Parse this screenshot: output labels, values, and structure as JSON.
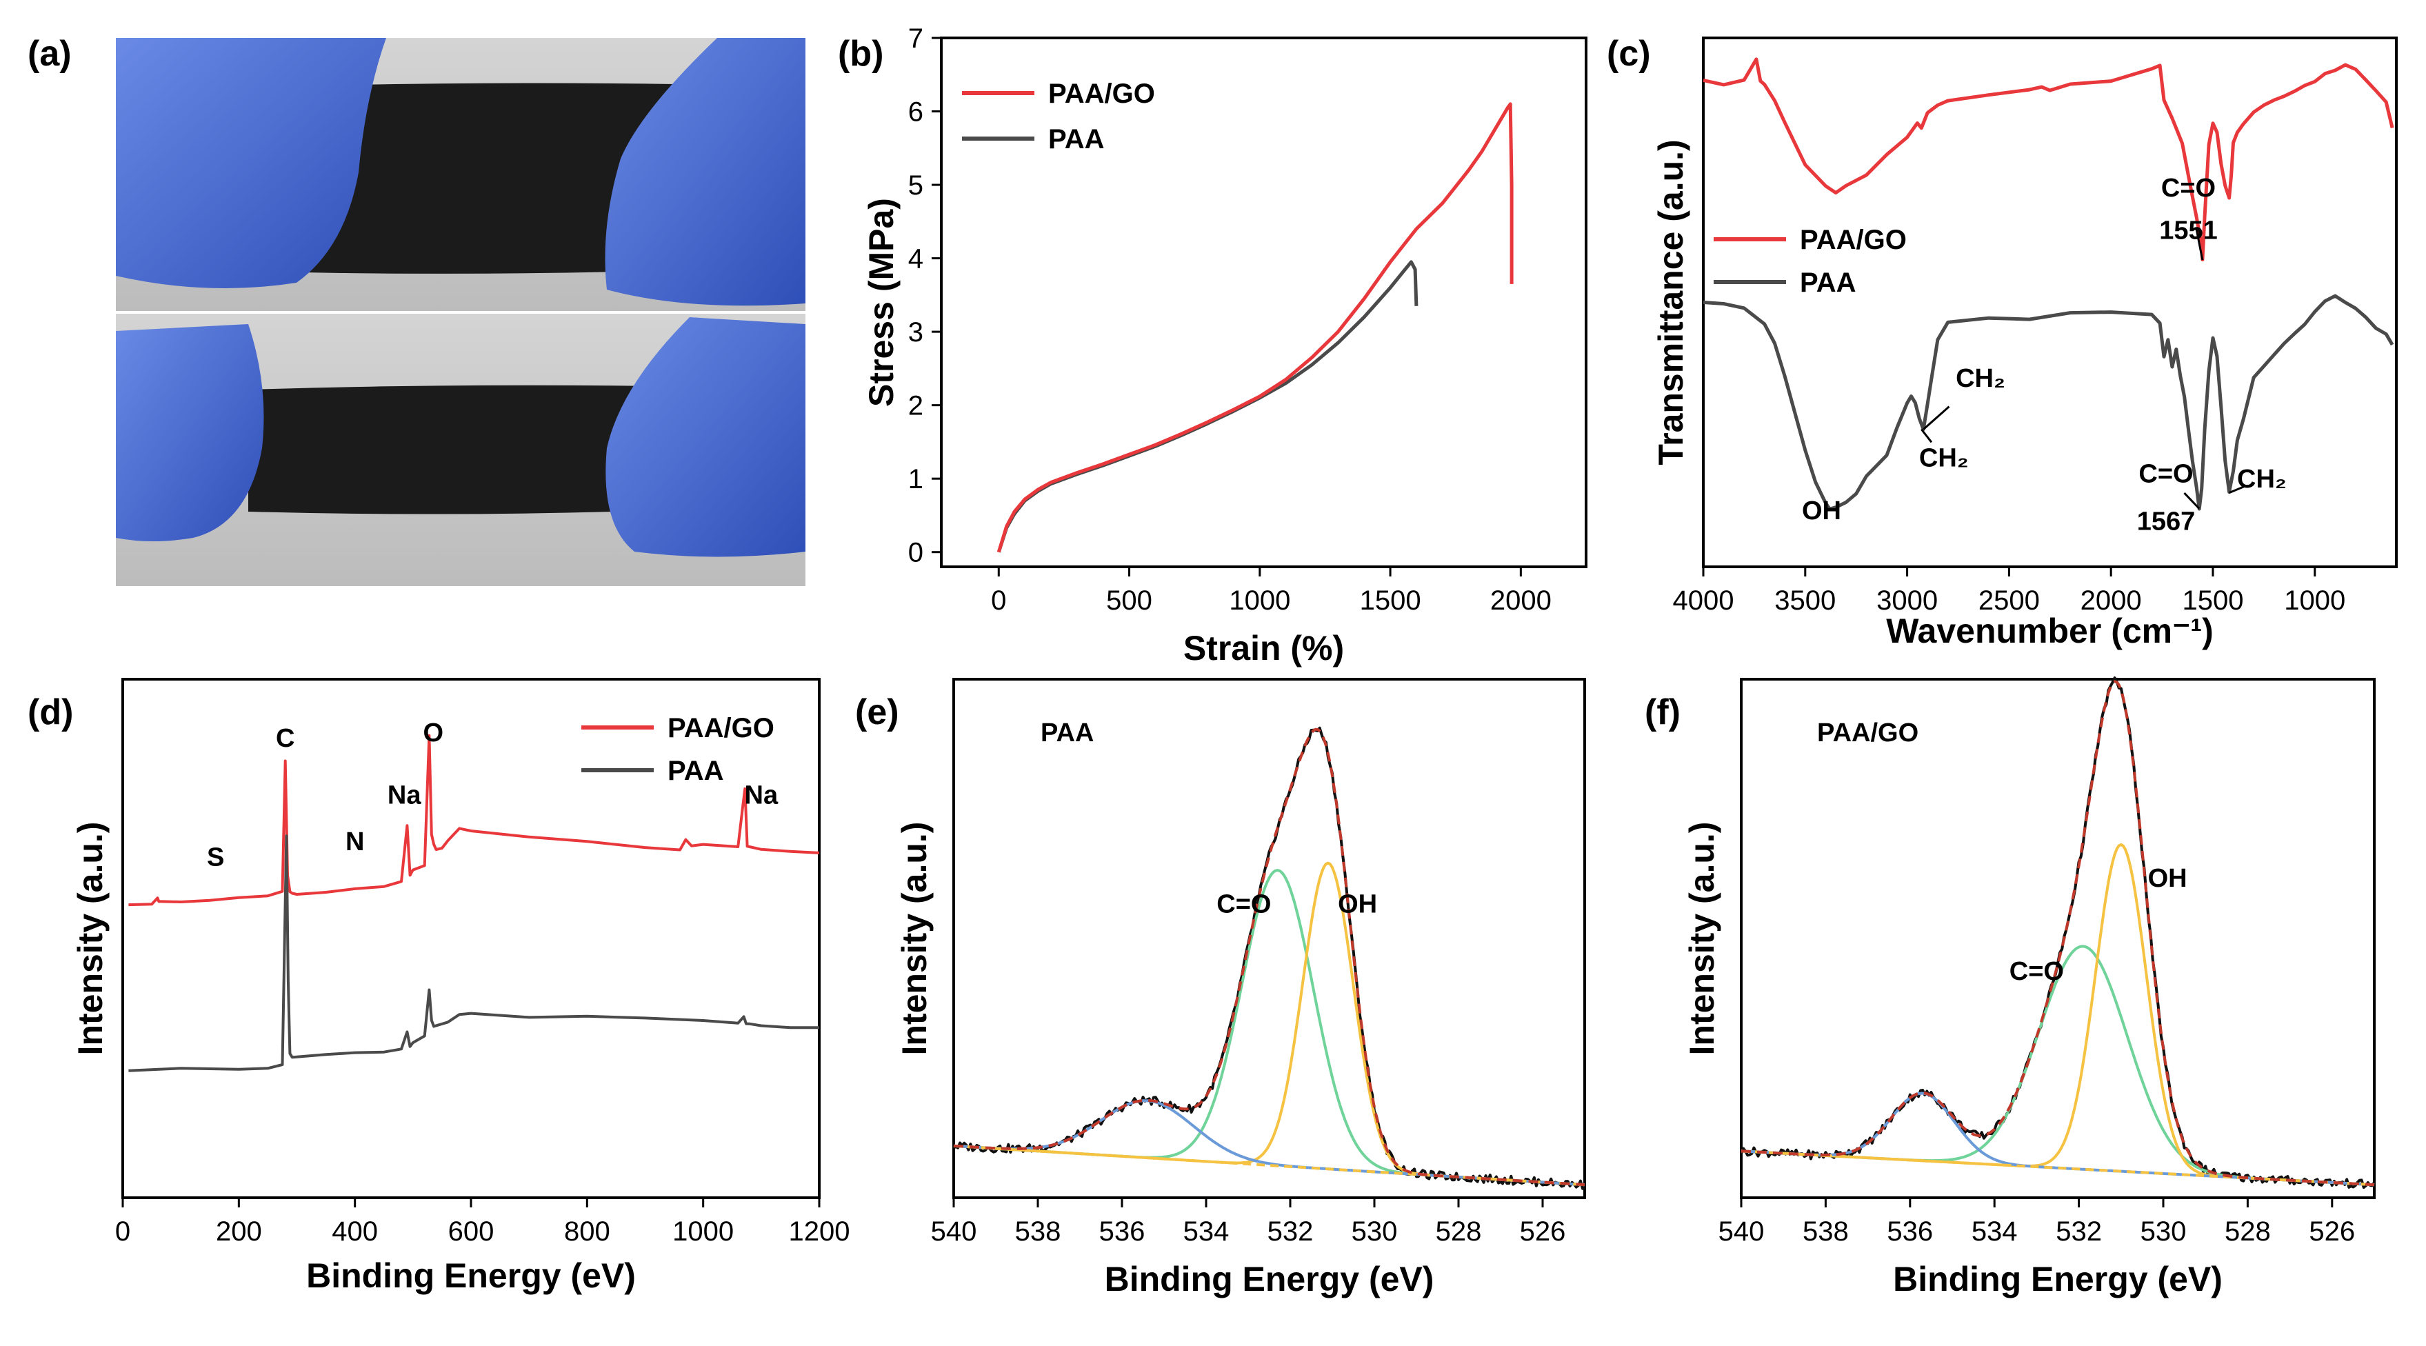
{
  "panel_labels": [
    "(a)",
    "(b)",
    "(c)",
    "(d)",
    "(e)",
    "(f)"
  ],
  "colors": {
    "paa_go": "#e8383b",
    "paa": "#4a4a4a",
    "fit": "#c0392b",
    "oh": "#f5c242",
    "co": "#6fd39a",
    "sat": "#6a9bd8",
    "bg": "#c8c8c8",
    "glove": "#4f6fd6",
    "film": "#1b1b1b"
  },
  "photo_a": {
    "description_icons": [
      "glove-icon",
      "film-icon"
    ]
  },
  "chart_data": [
    {
      "id": "b",
      "type": "line",
      "xlabel": "Strain (%)",
      "ylabel": "Stress (MPa)",
      "xlim": [
        -220,
        2250
      ],
      "ylim": [
        -0.2,
        7
      ],
      "xticks": [
        0,
        500,
        1000,
        1500,
        2000
      ],
      "yticks": [
        0,
        1,
        2,
        3,
        4,
        5,
        6,
        7
      ],
      "legend": [
        "PAA/GO",
        "PAA"
      ],
      "series": [
        {
          "name": "PAA/GO",
          "x": [
            0,
            30,
            60,
            100,
            150,
            200,
            300,
            400,
            500,
            600,
            700,
            800,
            900,
            1000,
            1100,
            1200,
            1300,
            1400,
            1500,
            1600,
            1700,
            1800,
            1850,
            1900,
            1950,
            1960,
            1965,
            1965
          ],
          "y": [
            0,
            0.35,
            0.55,
            0.72,
            0.85,
            0.95,
            1.08,
            1.2,
            1.33,
            1.46,
            1.61,
            1.77,
            1.94,
            2.12,
            2.35,
            2.65,
            3.0,
            3.45,
            3.95,
            4.4,
            4.75,
            5.2,
            5.45,
            5.75,
            6.05,
            6.1,
            5.0,
            3.65
          ]
        },
        {
          "name": "PAA",
          "x": [
            0,
            30,
            60,
            100,
            150,
            200,
            300,
            400,
            500,
            600,
            700,
            800,
            900,
            1000,
            1100,
            1200,
            1300,
            1400,
            1500,
            1550,
            1580,
            1595,
            1600
          ],
          "y": [
            0,
            0.33,
            0.52,
            0.7,
            0.83,
            0.93,
            1.06,
            1.18,
            1.31,
            1.44,
            1.59,
            1.75,
            1.92,
            2.1,
            2.3,
            2.55,
            2.85,
            3.2,
            3.6,
            3.82,
            3.95,
            3.85,
            3.35
          ]
        }
      ]
    },
    {
      "id": "c",
      "type": "line",
      "xlabel": "Wavenumber (cm⁻¹)",
      "ylabel": "Transmittance (a.u.)",
      "xlim": [
        4000,
        600
      ],
      "ylim": [
        0,
        100
      ],
      "xticks": [
        4000,
        3500,
        3000,
        2500,
        2000,
        1500,
        1000
      ],
      "legend": [
        "PAA/GO",
        "PAA"
      ],
      "annotations": [
        {
          "text": "C=O",
          "x": 1620,
          "y": 70,
          "series": "PAA/GO"
        },
        {
          "text": "1551",
          "x": 1620,
          "y": 62
        },
        {
          "text": "OH",
          "x": 3420,
          "y": 9
        },
        {
          "text": "CH₂",
          "x": 2640,
          "y": 34
        },
        {
          "text": "CH₂",
          "x": 2820,
          "y": 19
        },
        {
          "text": "C=O",
          "x": 1730,
          "y": 16
        },
        {
          "text": "1567",
          "x": 1730,
          "y": 7
        },
        {
          "text": "CH₂",
          "x": 1260,
          "y": 15
        }
      ],
      "series": [
        {
          "name": "PAA/GO",
          "x": [
            4000,
            3900,
            3800,
            3740,
            3720,
            3700,
            3650,
            3600,
            3500,
            3400,
            3350,
            3300,
            3200,
            3100,
            3000,
            2950,
            2930,
            2900,
            2850,
            2800,
            2600,
            2400,
            2340,
            2300,
            2200,
            2000,
            1800,
            1760,
            1740,
            1700,
            1680,
            1650,
            1620,
            1600,
            1580,
            1560,
            1551,
            1540,
            1520,
            1500,
            1480,
            1460,
            1440,
            1420,
            1410,
            1400,
            1380,
            1350,
            1300,
            1250,
            1200,
            1150,
            1100,
            1050,
            1000,
            950,
            900,
            850,
            800,
            750,
            700,
            650,
            620
          ],
          "y": [
            92,
            91,
            92,
            96,
            92,
            91,
            88,
            84,
            76,
            72,
            71,
            72,
            74,
            78,
            81,
            84,
            83,
            86,
            87,
            88,
            89,
            90,
            91,
            90,
            91,
            92,
            94,
            95,
            88,
            85,
            83,
            80,
            74,
            70,
            66,
            62,
            58,
            66,
            80,
            84,
            82,
            76,
            72,
            70,
            74,
            80,
            82,
            84,
            86,
            87,
            88,
            89,
            90,
            91,
            92,
            93,
            94,
            95,
            94,
            92,
            90,
            88,
            83
          ]
        },
        {
          "name": "PAA",
          "x": [
            4000,
            3900,
            3800,
            3700,
            3650,
            3600,
            3550,
            3500,
            3450,
            3400,
            3380,
            3350,
            3300,
            3250,
            3200,
            3100,
            3050,
            3000,
            2980,
            2960,
            2940,
            2920,
            2900,
            2880,
            2850,
            2800,
            2600,
            2400,
            2200,
            2000,
            1800,
            1760,
            1740,
            1720,
            1700,
            1680,
            1660,
            1640,
            1620,
            1600,
            1580,
            1567,
            1555,
            1540,
            1520,
            1500,
            1480,
            1460,
            1440,
            1420,
            1400,
            1380,
            1350,
            1300,
            1250,
            1200,
            1150,
            1100,
            1050,
            1000,
            950,
            900,
            850,
            800,
            750,
            700,
            650,
            620
          ],
          "y": [
            50,
            50,
            49,
            46,
            42,
            36,
            29,
            22,
            16,
            12,
            11,
            11,
            12,
            14,
            17,
            21,
            26,
            31,
            32,
            31,
            28,
            26,
            31,
            36,
            43,
            46,
            47,
            47,
            48,
            48,
            48,
            46,
            40,
            43,
            38,
            41,
            36,
            32,
            26,
            20,
            15,
            11,
            15,
            26,
            37,
            43,
            40,
            30,
            20,
            14,
            18,
            24,
            28,
            36,
            38,
            40,
            42,
            44,
            46,
            48,
            50,
            51,
            50,
            49,
            47,
            45,
            44,
            42
          ]
        }
      ]
    },
    {
      "id": "d",
      "type": "line",
      "xlabel": "Binding Energy (eV)",
      "ylabel": "Intensity (a.u.)",
      "xlim": [
        0,
        1200
      ],
      "ylim": [
        0,
        100
      ],
      "xticks": [
        0,
        200,
        400,
        600,
        800,
        1000,
        1200
      ],
      "legend": [
        "PAA/GO",
        "PAA"
      ],
      "annotations": [
        {
          "text": "S",
          "x": 160,
          "y": 64
        },
        {
          "text": "C",
          "x": 280,
          "y": 87
        },
        {
          "text": "N",
          "x": 400,
          "y": 67
        },
        {
          "text": "Na",
          "x": 485,
          "y": 76
        },
        {
          "text": "O",
          "x": 535,
          "y": 88
        },
        {
          "text": "Na",
          "x": 1100,
          "y": 76
        }
      ],
      "series": [
        {
          "name": "PAA/GO",
          "x": [
            10,
            50,
            60,
            62,
            100,
            150,
            200,
            250,
            275,
            280,
            284,
            288,
            292,
            300,
            350,
            400,
            450,
            480,
            490,
            495,
            500,
            520,
            528,
            532,
            536,
            540,
            550,
            560,
            580,
            600,
            700,
            800,
            900,
            960,
            970,
            980,
            1000,
            1060,
            1068,
            1072,
            1076,
            1080,
            1100,
            1150,
            1200
          ],
          "y": [
            56.5,
            56.8,
            58,
            57,
            57.2,
            57.5,
            57.8,
            58,
            59,
            84,
            62,
            59,
            58.5,
            58.5,
            59,
            59.5,
            60,
            61,
            72,
            62,
            63,
            64,
            89,
            70,
            68,
            67,
            67.5,
            69,
            71,
            70.5,
            69.5,
            68.5,
            67.5,
            67,
            69,
            68,
            68,
            67.5,
            75,
            79,
            68,
            67.5,
            67.2,
            67,
            66.5
          ]
        },
        {
          "name": "PAA",
          "x": [
            10,
            100,
            200,
            250,
            275,
            282,
            285,
            288,
            292,
            300,
            350,
            400,
            450,
            480,
            490,
            495,
            500,
            520,
            528,
            532,
            536,
            540,
            560,
            580,
            600,
            700,
            800,
            900,
            1000,
            1060,
            1070,
            1074,
            1080,
            1100,
            1150,
            1200
          ],
          "y": [
            24.5,
            24.8,
            25,
            25.2,
            25.5,
            70,
            42,
            28,
            27,
            27.2,
            27.5,
            27.8,
            28,
            28.5,
            32,
            29,
            30,
            31,
            40,
            34,
            33,
            33,
            34,
            35.5,
            35.5,
            35,
            34.8,
            34.5,
            34,
            33.8,
            35,
            33.5,
            33.5,
            33.2,
            33,
            32.8
          ]
        }
      ]
    },
    {
      "id": "e",
      "type": "line",
      "xlabel": "Binding Energy (eV)",
      "ylabel": "Intensity (a.u.)",
      "xlim": [
        540,
        525
      ],
      "ylim": [
        0,
        100
      ],
      "xticks": [
        540,
        538,
        536,
        534,
        532,
        530,
        528,
        526
      ],
      "annotations": [
        {
          "text": "PAA",
          "x": 537.3,
          "y": 88
        },
        {
          "text": "C=O",
          "x": 533.1,
          "y": 55
        },
        {
          "text": "OH",
          "x": 530.4,
          "y": 55
        }
      ],
      "components": [
        {
          "name": "C=O",
          "center": 532.3,
          "height": 57,
          "sigma": 0.85
        },
        {
          "name": "OH",
          "center": 531.1,
          "height": 59,
          "sigma": 0.6
        },
        {
          "name": "satellite",
          "center": 535.4,
          "height": 11,
          "sigma": 1.1
        }
      ],
      "baseline": [
        10,
        2.5
      ]
    },
    {
      "id": "f",
      "type": "line",
      "xlabel": "Binding Energy (eV)",
      "ylabel": "Intensity (a.u.)",
      "xlim": [
        540,
        525
      ],
      "ylim": [
        0,
        100
      ],
      "xticks": [
        540,
        538,
        536,
        534,
        532,
        530,
        528,
        526
      ],
      "annotations": [
        {
          "text": "PAA/GO",
          "x": 537.0,
          "y": 88
        },
        {
          "text": "C=O",
          "x": 533.0,
          "y": 42
        },
        {
          "text": "OH",
          "x": 529.9,
          "y": 60
        }
      ],
      "components": [
        {
          "name": "C=O",
          "center": 531.9,
          "height": 43,
          "sigma": 1.05
        },
        {
          "name": "OH",
          "center": 531.0,
          "height": 63,
          "sigma": 0.6
        },
        {
          "name": "satellite",
          "center": 535.7,
          "height": 13,
          "sigma": 0.75
        }
      ],
      "baseline": [
        9,
        2.5
      ]
    }
  ]
}
